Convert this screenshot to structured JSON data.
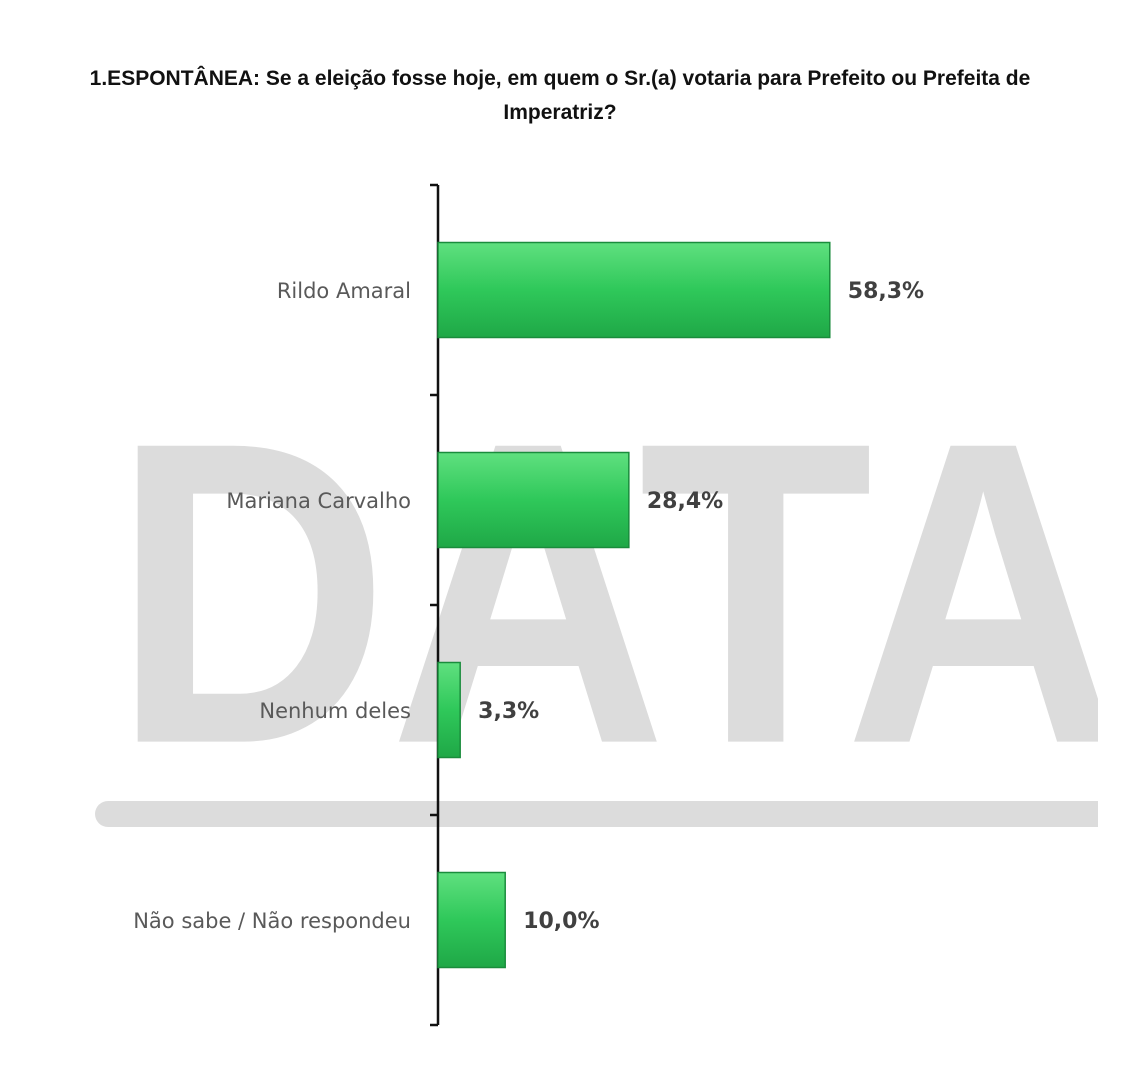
{
  "chart_data": {
    "type": "bar",
    "orientation": "horizontal",
    "title": "1.ESPONTÂNEA: Se a eleição fosse hoje, em quem o Sr.(a) votaria para Prefeito ou Prefeita de Imperatriz?",
    "watermark": "DATA",
    "categories": [
      "Rildo Amaral",
      "Mariana Carvalho",
      "Nenhum deles",
      "Não sabe / Não respondeu"
    ],
    "values": [
      58.3,
      28.4,
      3.3,
      10.0
    ],
    "value_labels": [
      "58,3%",
      "28,4%",
      "3,3%",
      "10,0%"
    ],
    "color": "#2fc85a"
  }
}
